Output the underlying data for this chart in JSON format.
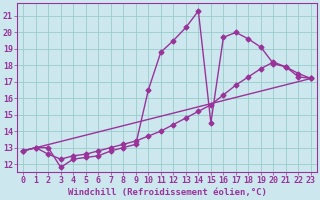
{
  "background_color": "#cce8ee",
  "grid_color": "#99cccc",
  "line_color": "#993399",
  "marker": "D",
  "markersize": 2.5,
  "linewidth": 1.0,
  "xlabel": "Windchill (Refroidissement éolien,°C)",
  "xlabel_fontsize": 6.5,
  "tick_fontsize": 6,
  "xlim": [
    -0.5,
    23.5
  ],
  "ylim": [
    11.5,
    21.8
  ],
  "yticks": [
    12,
    13,
    14,
    15,
    16,
    17,
    18,
    19,
    20,
    21
  ],
  "xticks": [
    0,
    1,
    2,
    3,
    4,
    5,
    6,
    7,
    8,
    9,
    10,
    11,
    12,
    13,
    14,
    15,
    16,
    17,
    18,
    19,
    20,
    21,
    22,
    23
  ],
  "series": [
    {
      "x": [
        0,
        1,
        2,
        3,
        4,
        5,
        6,
        7,
        8,
        9,
        10,
        11,
        12,
        13,
        14,
        15,
        16,
        17,
        18,
        19,
        20,
        21,
        22,
        23
      ],
      "y": [
        12.8,
        13.0,
        13.0,
        11.8,
        12.3,
        12.4,
        12.5,
        12.8,
        13.0,
        13.2,
        16.5,
        18.8,
        19.5,
        20.3,
        21.3,
        14.5,
        19.7,
        20.0,
        19.6,
        19.1,
        18.1,
        17.9,
        17.3,
        17.2
      ],
      "has_marker": true
    },
    {
      "x": [
        0,
        1,
        2,
        3,
        4,
        5,
        6,
        7,
        8,
        9,
        10,
        11,
        12,
        13,
        14,
        15,
        16,
        17,
        18,
        19,
        20,
        21,
        22,
        23
      ],
      "y": [
        12.8,
        13.0,
        12.6,
        12.3,
        12.5,
        12.6,
        12.8,
        13.0,
        13.2,
        13.4,
        13.7,
        14.0,
        14.4,
        14.8,
        15.2,
        15.6,
        16.2,
        16.8,
        17.3,
        17.8,
        18.2,
        17.9,
        17.5,
        17.2
      ],
      "has_marker": true
    },
    {
      "x": [
        0,
        23
      ],
      "y": [
        12.8,
        17.2
      ],
      "has_marker": false
    }
  ]
}
